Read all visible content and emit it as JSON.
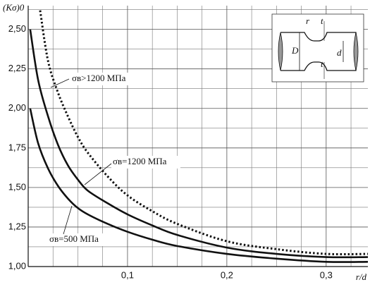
{
  "chart_data": {
    "type": "line",
    "y_label": "(Kσ)0",
    "x_label": "r/d",
    "xlim": [
      0,
      0.342
    ],
    "ylim": [
      1.0,
      2.65
    ],
    "xticks": [
      {
        "value": 0.1,
        "label": "0,1"
      },
      {
        "value": 0.2,
        "label": "0,2"
      },
      {
        "value": 0.3,
        "label": "0,3"
      }
    ],
    "yticks": [
      {
        "value": 1.0,
        "label": "1,00"
      },
      {
        "value": 1.25,
        "label": "1,25"
      },
      {
        "value": 1.5,
        "label": "1,50"
      },
      {
        "value": 1.75,
        "label": "1,75"
      },
      {
        "value": 2.0,
        "label": "2,00"
      },
      {
        "value": 2.25,
        "label": "2,25"
      },
      {
        "value": 2.5,
        "label": "2,50"
      }
    ],
    "x_minor_grid": [
      0.025,
      0.05,
      0.075,
      0.125,
      0.15,
      0.175,
      0.225,
      0.25,
      0.275,
      0.325
    ],
    "y_minor_grid": [
      1.125,
      1.375,
      1.625,
      1.875,
      2.125,
      2.375,
      2.625
    ],
    "grid": true,
    "series": [
      {
        "name": "σв>1200 МПа",
        "color": "#111",
        "style": "dotted",
        "x": [
          0.012,
          0.02,
          0.03,
          0.04,
          0.05,
          0.06,
          0.08,
          0.1,
          0.125,
          0.15,
          0.2,
          0.25,
          0.3,
          0.342
        ],
        "values": [
          2.62,
          2.3,
          2.1,
          1.95,
          1.82,
          1.72,
          1.57,
          1.45,
          1.35,
          1.27,
          1.16,
          1.11,
          1.08,
          1.08
        ]
      },
      {
        "name": "σв=1200 МПа",
        "color": "#111",
        "style": "solid",
        "x": [
          0.002,
          0.01,
          0.02,
          0.03,
          0.04,
          0.05,
          0.06,
          0.08,
          0.1,
          0.125,
          0.15,
          0.2,
          0.25,
          0.3,
          0.342
        ],
        "values": [
          2.5,
          2.18,
          1.95,
          1.77,
          1.64,
          1.55,
          1.48,
          1.4,
          1.33,
          1.26,
          1.2,
          1.12,
          1.08,
          1.06,
          1.06
        ]
      },
      {
        "name": "σв=500 МПа",
        "color": "#111",
        "style": "solid",
        "x": [
          0.002,
          0.01,
          0.02,
          0.03,
          0.04,
          0.05,
          0.06,
          0.08,
          0.1,
          0.125,
          0.15,
          0.2,
          0.25,
          0.3,
          0.342
        ],
        "values": [
          2.0,
          1.78,
          1.62,
          1.51,
          1.43,
          1.37,
          1.33,
          1.27,
          1.22,
          1.17,
          1.13,
          1.08,
          1.05,
          1.03,
          1.03
        ]
      }
    ],
    "inset": {
      "labels": [
        "r",
        "t",
        "D",
        "d",
        "t"
      ]
    }
  }
}
